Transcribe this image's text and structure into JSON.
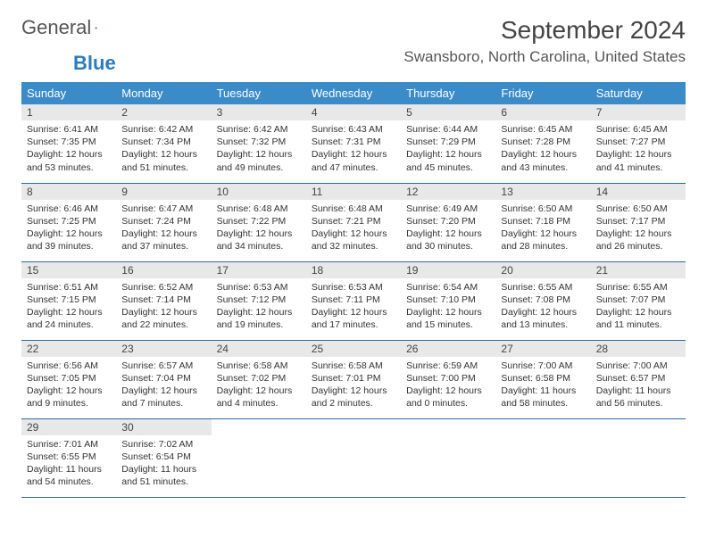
{
  "brand": {
    "part1": "General",
    "part2": "Blue"
  },
  "title": "September 2024",
  "location": "Swansboro, North Carolina, United States",
  "colors": {
    "header_bg": "#3b8bc9",
    "header_text": "#ffffff",
    "daynum_bg": "#e8e8e8",
    "cell_border": "#2b6aa0",
    "brand_blue": "#2b7bbf"
  },
  "weekdays": [
    "Sunday",
    "Monday",
    "Tuesday",
    "Wednesday",
    "Thursday",
    "Friday",
    "Saturday"
  ],
  "days": [
    {
      "n": "1",
      "sr": "6:41 AM",
      "ss": "7:35 PM",
      "dl": "12 hours and 53 minutes."
    },
    {
      "n": "2",
      "sr": "6:42 AM",
      "ss": "7:34 PM",
      "dl": "12 hours and 51 minutes."
    },
    {
      "n": "3",
      "sr": "6:42 AM",
      "ss": "7:32 PM",
      "dl": "12 hours and 49 minutes."
    },
    {
      "n": "4",
      "sr": "6:43 AM",
      "ss": "7:31 PM",
      "dl": "12 hours and 47 minutes."
    },
    {
      "n": "5",
      "sr": "6:44 AM",
      "ss": "7:29 PM",
      "dl": "12 hours and 45 minutes."
    },
    {
      "n": "6",
      "sr": "6:45 AM",
      "ss": "7:28 PM",
      "dl": "12 hours and 43 minutes."
    },
    {
      "n": "7",
      "sr": "6:45 AM",
      "ss": "7:27 PM",
      "dl": "12 hours and 41 minutes."
    },
    {
      "n": "8",
      "sr": "6:46 AM",
      "ss": "7:25 PM",
      "dl": "12 hours and 39 minutes."
    },
    {
      "n": "9",
      "sr": "6:47 AM",
      "ss": "7:24 PM",
      "dl": "12 hours and 37 minutes."
    },
    {
      "n": "10",
      "sr": "6:48 AM",
      "ss": "7:22 PM",
      "dl": "12 hours and 34 minutes."
    },
    {
      "n": "11",
      "sr": "6:48 AM",
      "ss": "7:21 PM",
      "dl": "12 hours and 32 minutes."
    },
    {
      "n": "12",
      "sr": "6:49 AM",
      "ss": "7:20 PM",
      "dl": "12 hours and 30 minutes."
    },
    {
      "n": "13",
      "sr": "6:50 AM",
      "ss": "7:18 PM",
      "dl": "12 hours and 28 minutes."
    },
    {
      "n": "14",
      "sr": "6:50 AM",
      "ss": "7:17 PM",
      "dl": "12 hours and 26 minutes."
    },
    {
      "n": "15",
      "sr": "6:51 AM",
      "ss": "7:15 PM",
      "dl": "12 hours and 24 minutes."
    },
    {
      "n": "16",
      "sr": "6:52 AM",
      "ss": "7:14 PM",
      "dl": "12 hours and 22 minutes."
    },
    {
      "n": "17",
      "sr": "6:53 AM",
      "ss": "7:12 PM",
      "dl": "12 hours and 19 minutes."
    },
    {
      "n": "18",
      "sr": "6:53 AM",
      "ss": "7:11 PM",
      "dl": "12 hours and 17 minutes."
    },
    {
      "n": "19",
      "sr": "6:54 AM",
      "ss": "7:10 PM",
      "dl": "12 hours and 15 minutes."
    },
    {
      "n": "20",
      "sr": "6:55 AM",
      "ss": "7:08 PM",
      "dl": "12 hours and 13 minutes."
    },
    {
      "n": "21",
      "sr": "6:55 AM",
      "ss": "7:07 PM",
      "dl": "12 hours and 11 minutes."
    },
    {
      "n": "22",
      "sr": "6:56 AM",
      "ss": "7:05 PM",
      "dl": "12 hours and 9 minutes."
    },
    {
      "n": "23",
      "sr": "6:57 AM",
      "ss": "7:04 PM",
      "dl": "12 hours and 7 minutes."
    },
    {
      "n": "24",
      "sr": "6:58 AM",
      "ss": "7:02 PM",
      "dl": "12 hours and 4 minutes."
    },
    {
      "n": "25",
      "sr": "6:58 AM",
      "ss": "7:01 PM",
      "dl": "12 hours and 2 minutes."
    },
    {
      "n": "26",
      "sr": "6:59 AM",
      "ss": "7:00 PM",
      "dl": "12 hours and 0 minutes."
    },
    {
      "n": "27",
      "sr": "7:00 AM",
      "ss": "6:58 PM",
      "dl": "11 hours and 58 minutes."
    },
    {
      "n": "28",
      "sr": "7:00 AM",
      "ss": "6:57 PM",
      "dl": "11 hours and 56 minutes."
    },
    {
      "n": "29",
      "sr": "7:01 AM",
      "ss": "6:55 PM",
      "dl": "11 hours and 54 minutes."
    },
    {
      "n": "30",
      "sr": "7:02 AM",
      "ss": "6:54 PM",
      "dl": "11 hours and 51 minutes."
    }
  ],
  "labels": {
    "sunrise": "Sunrise:",
    "sunset": "Sunset:",
    "daylight": "Daylight:"
  }
}
